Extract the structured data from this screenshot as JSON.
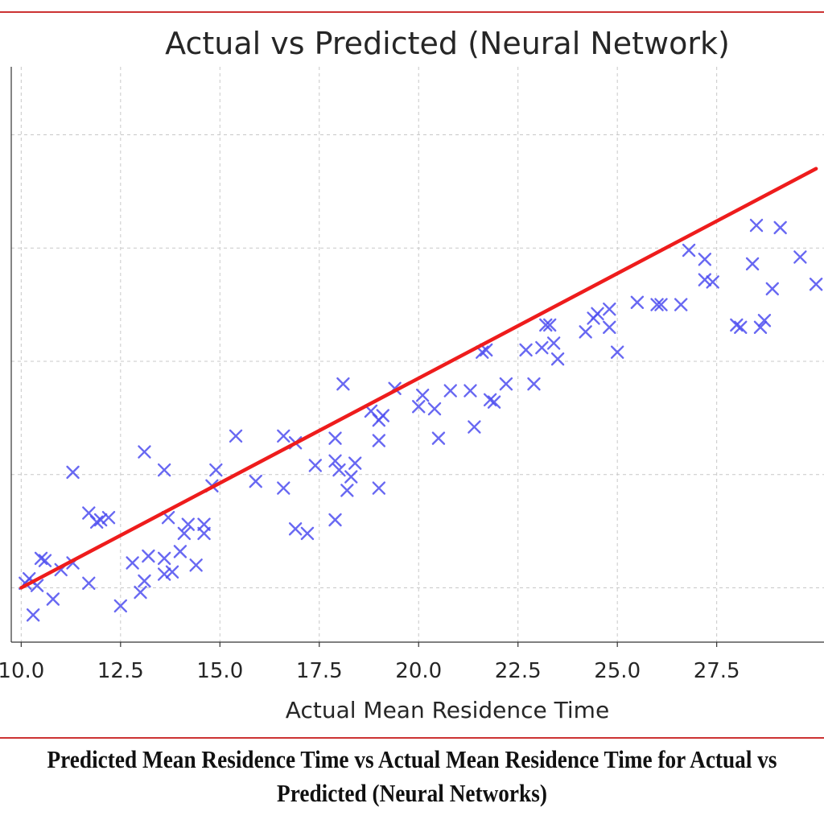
{
  "chart_data": {
    "type": "scatter",
    "title": "Actual vs Predicted (Neural Network)",
    "xlabel": "Actual Mean Residence Time",
    "ylabel": "",
    "x_ticks": [
      "10.0",
      "12.5",
      "15.0",
      "17.5",
      "20.0",
      "22.5",
      "25.0",
      "27.5"
    ],
    "x_tick_values": [
      10.0,
      12.5,
      15.0,
      17.5,
      20.0,
      22.5,
      25.0,
      27.5
    ],
    "xlim": [
      9.75,
      30.2
    ],
    "ylim": [
      7.6,
      33.0
    ],
    "grid": true,
    "legend": "none",
    "marker_color": "#4d4df0",
    "line_color": "#ee1c1c",
    "fit_line": {
      "x": [
        10.0,
        30.0
      ],
      "y": [
        10.0,
        28.5
      ]
    },
    "points": [
      [
        10.1,
        10.2
      ],
      [
        10.2,
        10.4
      ],
      [
        10.3,
        8.8
      ],
      [
        10.4,
        10.1
      ],
      [
        10.5,
        11.3
      ],
      [
        10.6,
        11.2
      ],
      [
        10.8,
        9.5
      ],
      [
        11.0,
        10.8
      ],
      [
        11.3,
        11.1
      ],
      [
        11.3,
        15.1
      ],
      [
        11.7,
        10.2
      ],
      [
        11.7,
        13.3
      ],
      [
        11.9,
        12.9
      ],
      [
        12.0,
        13.0
      ],
      [
        12.2,
        13.1
      ],
      [
        12.5,
        9.2
      ],
      [
        12.8,
        11.1
      ],
      [
        13.0,
        9.8
      ],
      [
        13.1,
        10.3
      ],
      [
        13.1,
        16.0
      ],
      [
        13.2,
        11.4
      ],
      [
        13.6,
        11.3
      ],
      [
        13.6,
        10.6
      ],
      [
        13.6,
        15.2
      ],
      [
        13.7,
        13.1
      ],
      [
        13.8,
        10.7
      ],
      [
        14.0,
        11.6
      ],
      [
        14.1,
        12.4
      ],
      [
        14.2,
        12.8
      ],
      [
        14.4,
        11.0
      ],
      [
        14.6,
        12.4
      ],
      [
        14.6,
        12.8
      ],
      [
        14.8,
        14.5
      ],
      [
        14.9,
        15.2
      ],
      [
        15.4,
        16.7
      ],
      [
        15.9,
        14.7
      ],
      [
        16.6,
        14.4
      ],
      [
        16.6,
        16.7
      ],
      [
        16.9,
        16.4
      ],
      [
        16.9,
        12.6
      ],
      [
        17.2,
        12.4
      ],
      [
        17.4,
        15.4
      ],
      [
        17.9,
        16.6
      ],
      [
        17.9,
        15.6
      ],
      [
        17.9,
        13.0
      ],
      [
        18.0,
        15.2
      ],
      [
        18.1,
        19.0
      ],
      [
        18.2,
        14.3
      ],
      [
        18.3,
        14.9
      ],
      [
        18.4,
        15.5
      ],
      [
        18.8,
        17.8
      ],
      [
        19.0,
        17.4
      ],
      [
        19.1,
        17.6
      ],
      [
        19.0,
        16.5
      ],
      [
        19.0,
        14.4
      ],
      [
        19.4,
        18.8
      ],
      [
        20.0,
        18.0
      ],
      [
        20.1,
        18.5
      ],
      [
        20.4,
        17.9
      ],
      [
        20.5,
        16.6
      ],
      [
        20.8,
        18.7
      ],
      [
        21.3,
        18.7
      ],
      [
        21.4,
        17.1
      ],
      [
        21.6,
        20.4
      ],
      [
        21.7,
        20.5
      ],
      [
        21.8,
        18.3
      ],
      [
        21.9,
        18.2
      ],
      [
        22.2,
        19.0
      ],
      [
        22.7,
        20.5
      ],
      [
        22.9,
        19.0
      ],
      [
        23.1,
        20.6
      ],
      [
        23.2,
        21.6
      ],
      [
        23.3,
        21.6
      ],
      [
        23.4,
        20.8
      ],
      [
        23.5,
        20.1
      ],
      [
        24.2,
        21.3
      ],
      [
        24.4,
        21.9
      ],
      [
        24.5,
        22.1
      ],
      [
        24.8,
        22.3
      ],
      [
        24.8,
        21.5
      ],
      [
        25.0,
        20.4
      ],
      [
        25.5,
        22.6
      ],
      [
        26.0,
        22.5
      ],
      [
        26.1,
        22.5
      ],
      [
        26.6,
        22.5
      ],
      [
        26.8,
        24.9
      ],
      [
        27.2,
        24.5
      ],
      [
        27.2,
        23.6
      ],
      [
        27.4,
        23.5
      ],
      [
        28.0,
        21.6
      ],
      [
        28.1,
        21.5
      ],
      [
        28.4,
        24.3
      ],
      [
        28.5,
        26.0
      ],
      [
        28.6,
        21.5
      ],
      [
        28.7,
        21.8
      ],
      [
        28.9,
        23.2
      ],
      [
        29.1,
        25.9
      ],
      [
        29.6,
        24.6
      ],
      [
        30.0,
        23.4
      ]
    ]
  },
  "caption": {
    "line1": "Predicted Mean Residence Time vs Actual Mean Residence Time for Actual vs",
    "line2": "Predicted (Neural Networks)"
  }
}
